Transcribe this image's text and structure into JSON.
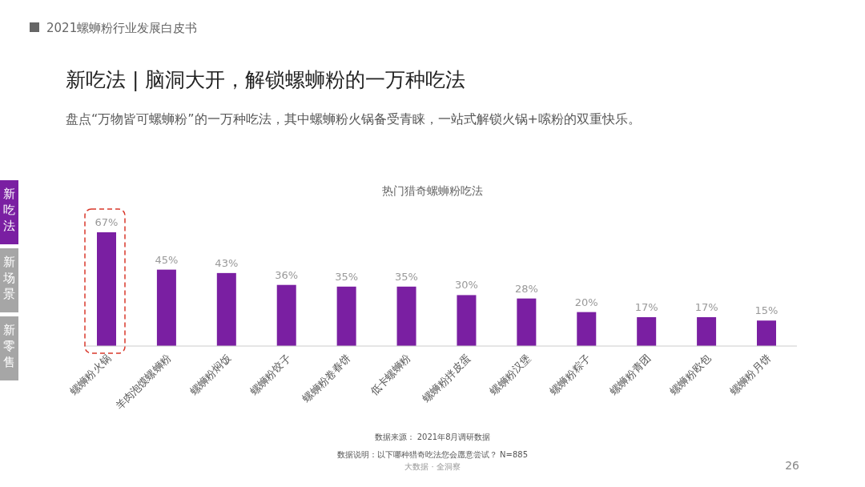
{
  "chart_data": {
    "type": "bar",
    "title": "新吃法 | 脑洞大开，解锁螺蛳粉的一万种吃法",
    "subtitle": "盘点“万物皆可螺蛳粉”的一万种吃法，其中螺蛳粉火锅备受青睐，一站式解锁火锅+嗦粉的双重快乐。",
    "xlabel": "热门猎奇螺蛳粉吃法",
    "categories": [
      "螺蛳粉火锅",
      "羊肉泡馍螺蛳粉",
      "螺蛳粉焖饭",
      "螺蛳粉饺子",
      "螺蛳粉卷春饼",
      "低卡螺蛳粉",
      "螺蛳粉拌皮蛋",
      "螺蛳粉汉堡",
      "螺蛳粉粽子",
      "螺蛳粉青团",
      "螺蛳粉欧包",
      "螺蛳粉月饼"
    ],
    "values": [
      67,
      45,
      43,
      36,
      35,
      35,
      30,
      28,
      20,
      17,
      17,
      15
    ],
    "value_labels": [
      "67%",
      "45%",
      "43%",
      "36%",
      "35%",
      "35%",
      "30%",
      "28%",
      "20%",
      "17%",
      "17%",
      "15%"
    ],
    "color": "#7a1fa2",
    "annotations": [
      "2021螺蛳粉行业发展白皮书",
      "新吃法",
      "新场景",
      "新零售",
      "数据来源： 2021年8月调研数据",
      "数据说明：以下哪种猎奇吃法您会愿意尝试？ N=885",
      "大数据 · 全洞察",
      "26"
    ]
  }
}
